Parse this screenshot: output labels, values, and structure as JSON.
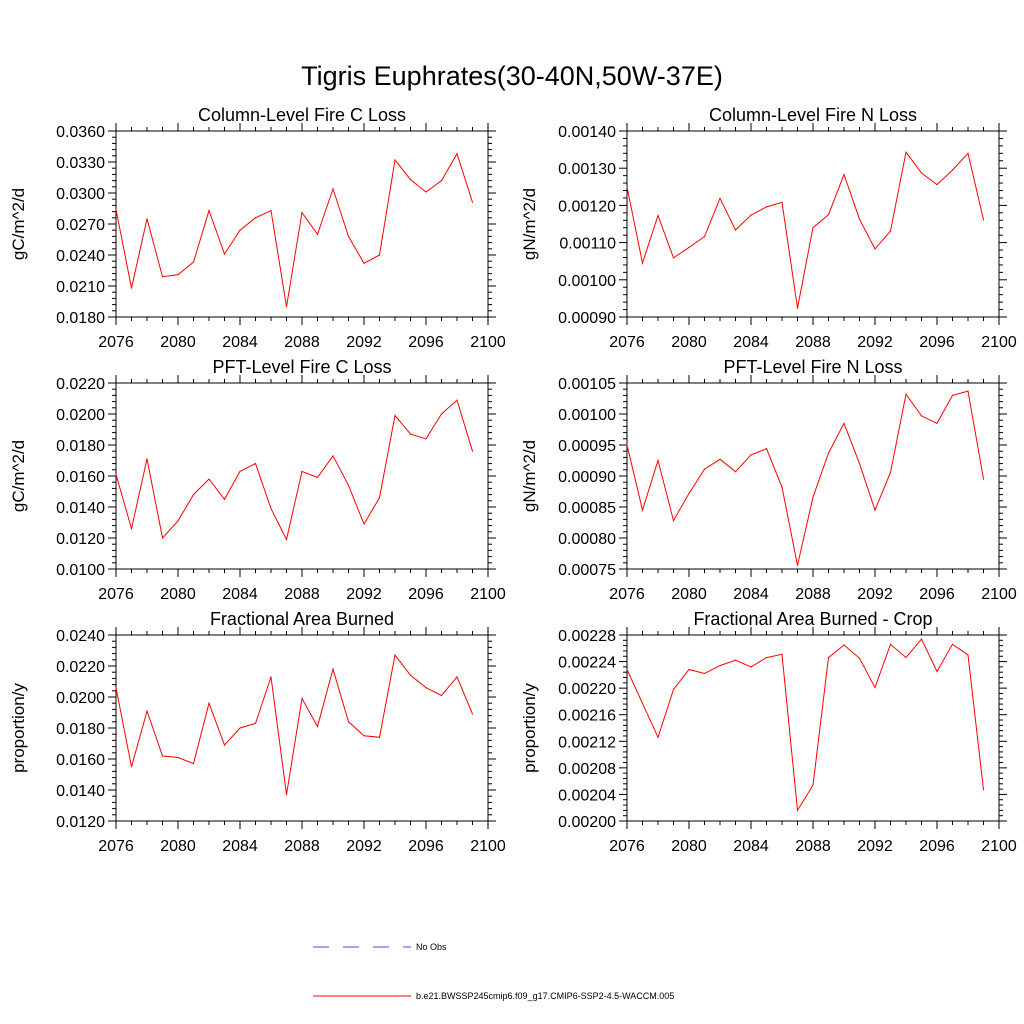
{
  "figure": {
    "title": "Tigris Euphrates(30-40N,50W-37E)"
  },
  "legend": {
    "entries": [
      {
        "label": "No Obs",
        "color": "#4b4bd6",
        "dash": true
      },
      {
        "label": "b.e21.BWSSP245cmip6.f09_g17.CMIP6-SSP2-4.5-WACCM.005",
        "color": "#ff0000",
        "dash": false
      }
    ]
  },
  "chart_data": [
    {
      "type": "line",
      "title": "Column-Level Fire C Loss",
      "xlabel": "",
      "ylabel": "gC/m^2/d",
      "xlim": [
        2076,
        2100
      ],
      "ylim": [
        0.018,
        0.036
      ],
      "xticks": [
        2076,
        2080,
        2084,
        2088,
        2092,
        2096,
        2100
      ],
      "xtick_labels": [
        "2076",
        "2080",
        "2084",
        "2088",
        "2092",
        "2096",
        "2100"
      ],
      "yticks": [
        0.018,
        0.021,
        0.024,
        0.027,
        0.03,
        0.033,
        0.036
      ],
      "ytick_labels": [
        "0.0180",
        "0.0210",
        "0.0240",
        "0.0270",
        "0.0300",
        "0.0330",
        "0.0360"
      ],
      "series": [
        {
          "name": "b.e21.BWSSP245cmip6.f09_g17.CMIP6-SSP2-4.5-WACCM.005",
          "color": "#ff0000",
          "x": [
            2076,
            2077,
            2078,
            2079,
            2080,
            2081,
            2082,
            2083,
            2084,
            2085,
            2086,
            2087,
            2088,
            2089,
            2090,
            2091,
            2092,
            2093,
            2094,
            2095,
            2096,
            2097,
            2098,
            2099
          ],
          "y": [
            0.0284,
            0.0208,
            0.0275,
            0.0219,
            0.0221,
            0.0233,
            0.0283,
            0.0241,
            0.0264,
            0.0276,
            0.0283,
            0.019,
            0.0281,
            0.026,
            0.0304,
            0.0258,
            0.0232,
            0.024,
            0.0332,
            0.0313,
            0.0301,
            0.0312,
            0.0338,
            0.0291
          ]
        }
      ]
    },
    {
      "type": "line",
      "title": "Column-Level Fire N Loss",
      "xlabel": "",
      "ylabel": "gN/m^2/d",
      "xlim": [
        2076,
        2100
      ],
      "ylim": [
        0.0009,
        0.0014
      ],
      "xticks": [
        2076,
        2080,
        2084,
        2088,
        2092,
        2096,
        2100
      ],
      "xtick_labels": [
        "2076",
        "2080",
        "2084",
        "2088",
        "2092",
        "2096",
        "2100"
      ],
      "yticks": [
        0.0009,
        0.001,
        0.0011,
        0.0012,
        0.0013,
        0.0014
      ],
      "ytick_labels": [
        "0.00090",
        "0.00100",
        "0.00110",
        "0.00120",
        "0.00130",
        "0.00140"
      ],
      "series": [
        {
          "name": "b.e21.BWSSP245cmip6.f09_g17.CMIP6-SSP2-4.5-WACCM.005",
          "color": "#ff0000",
          "x": [
            2076,
            2077,
            2078,
            2079,
            2080,
            2081,
            2082,
            2083,
            2084,
            2085,
            2086,
            2087,
            2088,
            2089,
            2090,
            2091,
            2092,
            2093,
            2094,
            2095,
            2096,
            2097,
            2098,
            2099
          ],
          "y": [
            0.00125,
            0.001045,
            0.001173,
            0.001059,
            0.001087,
            0.001116,
            0.001219,
            0.001134,
            0.001174,
            0.001196,
            0.001208,
            0.000924,
            0.00114,
            0.001175,
            0.001283,
            0.001163,
            0.001083,
            0.001131,
            0.001343,
            0.001287,
            0.001256,
            0.001295,
            0.00134,
            0.001161
          ]
        }
      ]
    },
    {
      "type": "line",
      "title": "PFT-Level Fire C Loss",
      "xlabel": "",
      "ylabel": "gC/m^2/d",
      "xlim": [
        2076,
        2100
      ],
      "ylim": [
        0.01,
        0.022
      ],
      "xticks": [
        2076,
        2080,
        2084,
        2088,
        2092,
        2096,
        2100
      ],
      "xtick_labels": [
        "2076",
        "2080",
        "2084",
        "2088",
        "2092",
        "2096",
        "2100"
      ],
      "yticks": [
        0.01,
        0.012,
        0.014,
        0.016,
        0.018,
        0.02,
        0.022
      ],
      "ytick_labels": [
        "0.0100",
        "0.0120",
        "0.0140",
        "0.0160",
        "0.0180",
        "0.0200",
        "0.0220"
      ],
      "series": [
        {
          "name": "b.e21.BWSSP245cmip6.f09_g17.CMIP6-SSP2-4.5-WACCM.005",
          "color": "#ff0000",
          "x": [
            2076,
            2077,
            2078,
            2079,
            2080,
            2081,
            2082,
            2083,
            2084,
            2085,
            2086,
            2087,
            2088,
            2089,
            2090,
            2091,
            2092,
            2093,
            2094,
            2095,
            2096,
            2097,
            2098,
            2099
          ],
          "y": [
            0.0161,
            0.0126,
            0.0171,
            0.012,
            0.0131,
            0.0148,
            0.0158,
            0.0145,
            0.0163,
            0.0168,
            0.0139,
            0.0119,
            0.0163,
            0.0159,
            0.0173,
            0.0154,
            0.0129,
            0.0146,
            0.0199,
            0.0187,
            0.0184,
            0.02,
            0.0209,
            0.0176
          ]
        }
      ]
    },
    {
      "type": "line",
      "title": "PFT-Level Fire N Loss",
      "xlabel": "",
      "ylabel": "gN/m^2/d",
      "xlim": [
        2076,
        2100
      ],
      "ylim": [
        0.00075,
        0.00105
      ],
      "xticks": [
        2076,
        2080,
        2084,
        2088,
        2092,
        2096,
        2100
      ],
      "xtick_labels": [
        "2076",
        "2080",
        "2084",
        "2088",
        "2092",
        "2096",
        "2100"
      ],
      "yticks": [
        0.00075,
        0.0008,
        0.00085,
        0.0009,
        0.00095,
        0.001,
        0.00105
      ],
      "ytick_labels": [
        "0.00075",
        "0.00080",
        "0.00085",
        "0.00090",
        "0.00095",
        "0.00100",
        "0.00105"
      ],
      "series": [
        {
          "name": "b.e21.BWSSP245cmip6.f09_g17.CMIP6-SSP2-4.5-WACCM.005",
          "color": "#ff0000",
          "x": [
            2076,
            2077,
            2078,
            2079,
            2080,
            2081,
            2082,
            2083,
            2084,
            2085,
            2086,
            2087,
            2088,
            2089,
            2090,
            2091,
            2092,
            2093,
            2094,
            2095,
            2096,
            2097,
            2098,
            2099
          ],
          "y": [
            0.00095,
            0.000845,
            0.000925,
            0.000828,
            0.000872,
            0.000911,
            0.000927,
            0.000907,
            0.000934,
            0.000944,
            0.000882,
            0.000756,
            0.000866,
            0.000937,
            0.000985,
            0.00092,
            0.000845,
            0.000906,
            0.001032,
            0.000997,
            0.000985,
            0.00103,
            0.001037,
            0.000895
          ]
        }
      ]
    },
    {
      "type": "line",
      "title": "Fractional Area Burned",
      "xlabel": "",
      "ylabel": "proportion/y",
      "xlim": [
        2076,
        2100
      ],
      "ylim": [
        0.012,
        0.024
      ],
      "xticks": [
        2076,
        2080,
        2084,
        2088,
        2092,
        2096,
        2100
      ],
      "xtick_labels": [
        "2076",
        "2080",
        "2084",
        "2088",
        "2092",
        "2096",
        "2100"
      ],
      "yticks": [
        0.012,
        0.014,
        0.016,
        0.018,
        0.02,
        0.022,
        0.024
      ],
      "ytick_labels": [
        "0.0120",
        "0.0140",
        "0.0160",
        "0.0180",
        "0.0200",
        "0.0220",
        "0.0240"
      ],
      "series": [
        {
          "name": "b.e21.BWSSP245cmip6.f09_g17.CMIP6-SSP2-4.5-WACCM.005",
          "color": "#ff0000",
          "x": [
            2076,
            2077,
            2078,
            2079,
            2080,
            2081,
            2082,
            2083,
            2084,
            2085,
            2086,
            2087,
            2088,
            2089,
            2090,
            2091,
            2092,
            2093,
            2094,
            2095,
            2096,
            2097,
            2098,
            2099
          ],
          "y": [
            0.0206,
            0.0155,
            0.0191,
            0.0162,
            0.0161,
            0.0157,
            0.0196,
            0.0169,
            0.018,
            0.0183,
            0.0213,
            0.0137,
            0.0199,
            0.0181,
            0.0218,
            0.0184,
            0.0175,
            0.0174,
            0.0227,
            0.0214,
            0.0206,
            0.0201,
            0.0213,
            0.0189
          ]
        }
      ]
    },
    {
      "type": "line",
      "title": "Fractional Area Burned - Crop",
      "xlabel": "",
      "ylabel": "proportion/y",
      "xlim": [
        2076,
        2100
      ],
      "ylim": [
        0.002,
        0.00228
      ],
      "xticks": [
        2076,
        2080,
        2084,
        2088,
        2092,
        2096,
        2100
      ],
      "xtick_labels": [
        "2076",
        "2080",
        "2084",
        "2088",
        "2092",
        "2096",
        "2100"
      ],
      "yticks": [
        0.002,
        0.00204,
        0.00208,
        0.00212,
        0.00216,
        0.0022,
        0.00224,
        0.00228
      ],
      "ytick_labels": [
        "0.00200",
        "0.00204",
        "0.00208",
        "0.00212",
        "0.00216",
        "0.00220",
        "0.00224",
        "0.00228"
      ],
      "series": [
        {
          "name": "b.e21.BWSSP245cmip6.f09_g17.CMIP6-SSP2-4.5-WACCM.005",
          "color": "#ff0000",
          "x": [
            2076,
            2077,
            2078,
            2079,
            2080,
            2081,
            2082,
            2083,
            2084,
            2085,
            2086,
            2087,
            2088,
            2089,
            2090,
            2091,
            2092,
            2093,
            2094,
            2095,
            2096,
            2097,
            2098,
            2099
          ],
          "y": [
            0.002228,
            0.002177,
            0.002126,
            0.002198,
            0.002228,
            0.002222,
            0.002234,
            0.002242,
            0.002232,
            0.002246,
            0.002251,
            0.002016,
            0.002054,
            0.002246,
            0.002265,
            0.002245,
            0.002201,
            0.002266,
            0.002246,
            0.002274,
            0.002225,
            0.002266,
            0.00225,
            0.002047
          ]
        }
      ]
    }
  ]
}
